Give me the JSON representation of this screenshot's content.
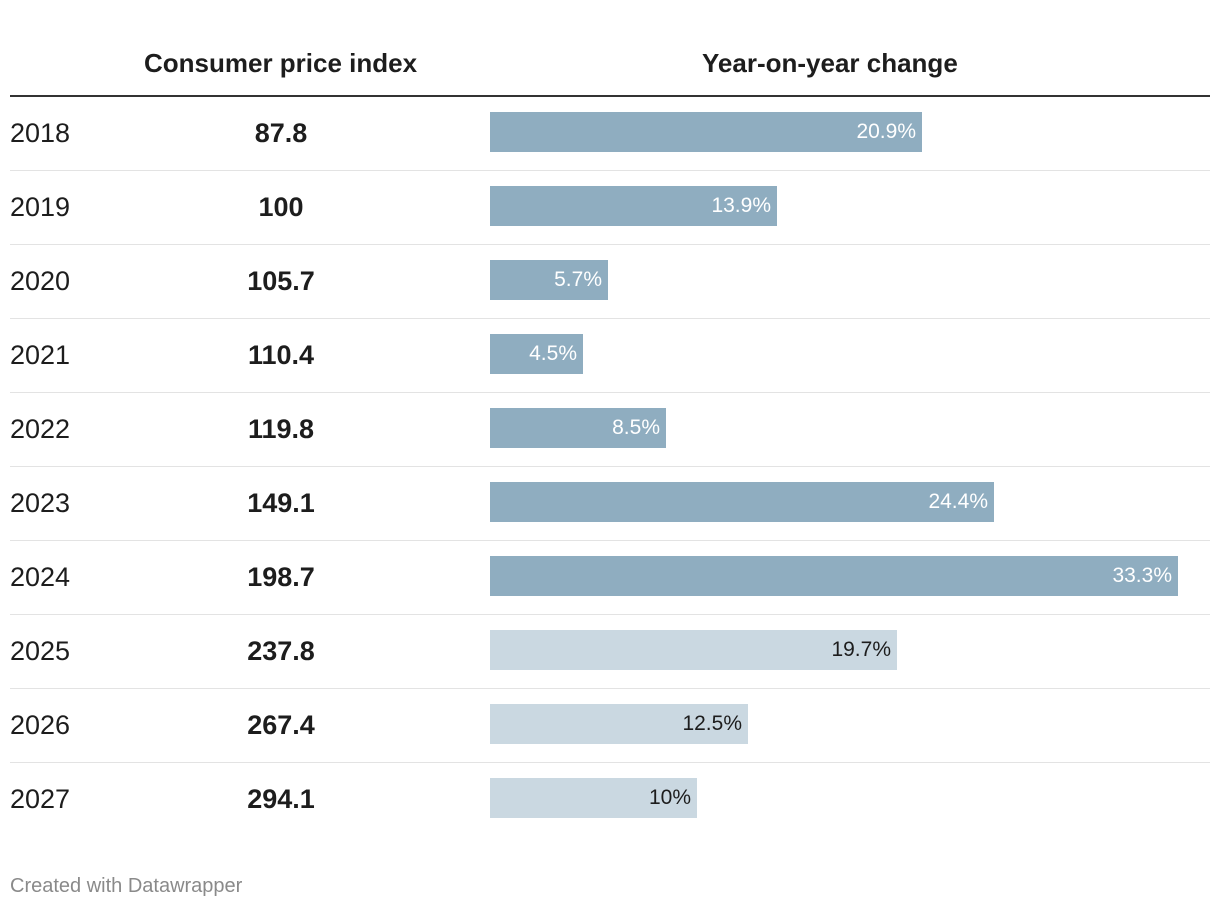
{
  "chart_data": {
    "type": "table",
    "columns": [
      "",
      "Consumer price index",
      "Year-on-year change"
    ],
    "rows": [
      {
        "year": "2018",
        "cpi": "87.8",
        "change": 20.9,
        "change_label": "20.9%",
        "forecast": false
      },
      {
        "year": "2019",
        "cpi": "100",
        "change": 13.9,
        "change_label": "13.9%",
        "forecast": false
      },
      {
        "year": "2020",
        "cpi": "105.7",
        "change": 5.7,
        "change_label": "5.7%",
        "forecast": false
      },
      {
        "year": "2021",
        "cpi": "110.4",
        "change": 4.5,
        "change_label": "4.5%",
        "forecast": false
      },
      {
        "year": "2022",
        "cpi": "119.8",
        "change": 8.5,
        "change_label": "8.5%",
        "forecast": false
      },
      {
        "year": "2023",
        "cpi": "149.1",
        "change": 24.4,
        "change_label": "24.4%",
        "forecast": false
      },
      {
        "year": "2024",
        "cpi": "198.7",
        "change": 33.3,
        "change_label": "33.3%",
        "forecast": false
      },
      {
        "year": "2025",
        "cpi": "237.8",
        "change": 19.7,
        "change_label": "19.7%",
        "forecast": true
      },
      {
        "year": "2026",
        "cpi": "267.4",
        "change": 12.5,
        "change_label": "12.5%",
        "forecast": true
      },
      {
        "year": "2027",
        "cpi": "294.1",
        "change": 10,
        "change_label": "10%",
        "forecast": true
      }
    ],
    "bar_max": 33.3,
    "colors": {
      "actual_bar": "#8fadc0",
      "forecast_bar": "#cad8e1"
    }
  },
  "headers": {
    "cpi": "Consumer price index",
    "yoy": "Year-on-year change"
  },
  "footer": "Created with Datawrapper"
}
